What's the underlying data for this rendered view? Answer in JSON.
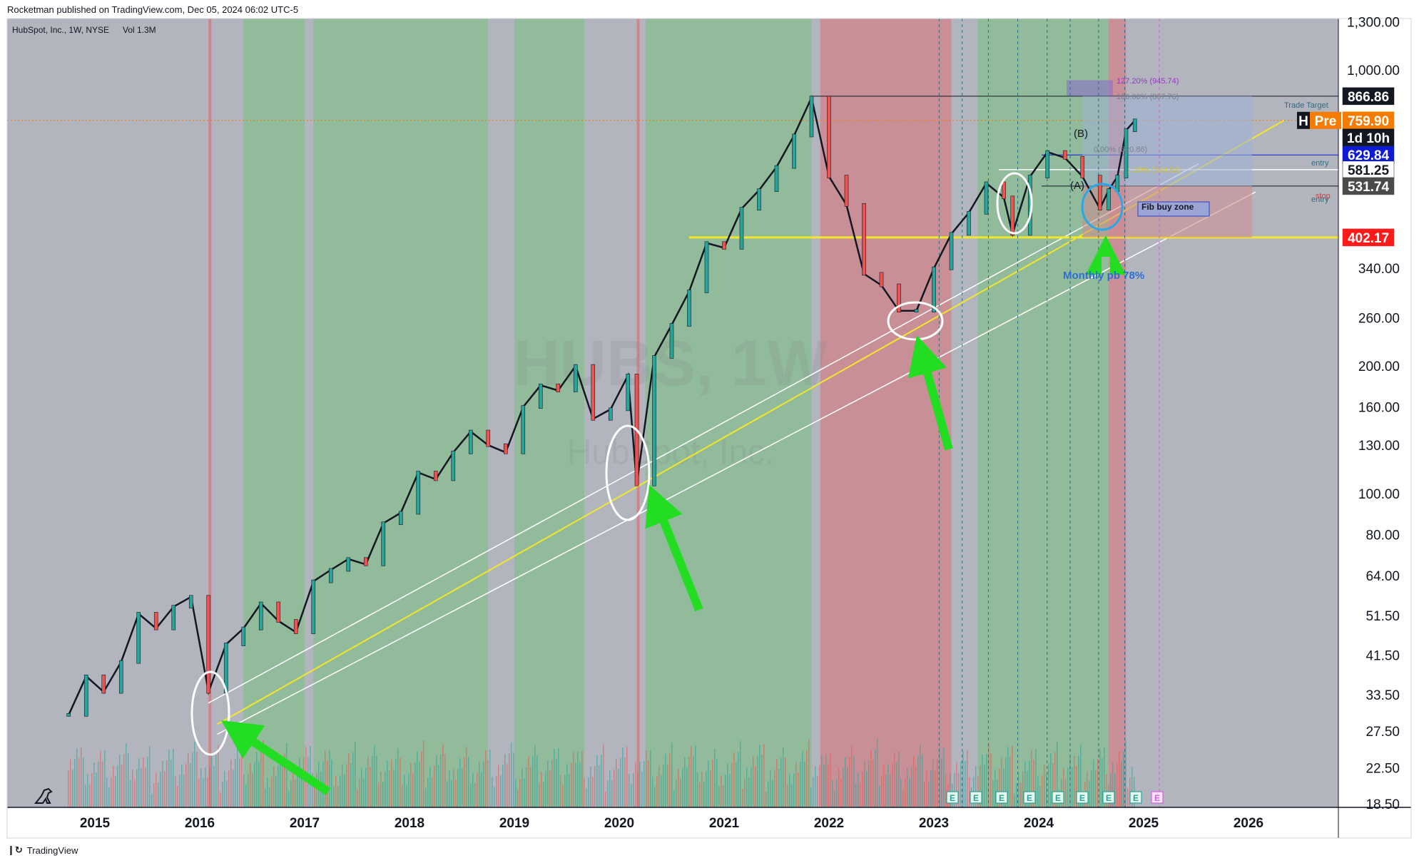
{
  "header": {
    "published_line": "Rocketman published on TradingView.com, Dec 05, 2024 06:02 UTC-5"
  },
  "footer": {
    "brand": "TradingView"
  },
  "chart_data": {
    "type": "candlestick",
    "symbol_line": "HubSpot, Inc., 1W, NYSE",
    "volume_label": "Vol",
    "volume_value": "1.3M",
    "watermark_ticker": "HUBS, 1W",
    "watermark_name": "HubSpot, Inc.",
    "y_scale": "log",
    "x_ticks": [
      "2015",
      "2016",
      "2017",
      "2018",
      "2019",
      "2020",
      "2021",
      "2022",
      "2023",
      "2024",
      "2025",
      "2026"
    ],
    "y_ticks": [
      "1,300.00",
      "1,000.00",
      "340.00",
      "260.00",
      "200.00",
      "160.00",
      "130.00",
      "100.00",
      "80.00",
      "64.00",
      "51.50",
      "41.50",
      "33.50",
      "27.50",
      "22.50",
      "18.50"
    ],
    "y_tick_values": [
      1300,
      1000,
      340,
      260,
      200,
      160,
      130,
      100,
      80,
      64,
      51.5,
      41.5,
      33.5,
      27.5,
      22.5,
      18.5
    ],
    "price_tags": [
      {
        "label": "866.86",
        "value": 866.86,
        "bg": "#131722",
        "fg": "#ffffff"
      },
      {
        "label": "759.90",
        "value": 759.9,
        "bg": "#f57c00",
        "fg": "#ffffff"
      },
      {
        "label": "1d 10h",
        "value": 700,
        "bg": "#131722",
        "fg": "#ffffff"
      },
      {
        "label": "629.84",
        "value": 629.84,
        "bg": "#0d1bd6",
        "fg": "#ffffff"
      },
      {
        "label": "581.25",
        "value": 581.25,
        "bg": "#ffffff",
        "fg": "#131722"
      },
      {
        "label": "531.74",
        "value": 531.74,
        "bg": "#4a4a4a",
        "fg": "#ffffff"
      },
      {
        "label": "402.17",
        "value": 402.17,
        "bg": "#ff1a1a",
        "fg": "#ffffff"
      }
    ],
    "pre_label": "Pre",
    "h_label": "H",
    "annotations": {
      "trade_target": "Trade Target",
      "entry_1": "entry",
      "entry_2": "entry",
      "stop": "stop",
      "fib_127": "127.20% (945.74)",
      "fib_100": "100.00% (867.76)",
      "fib_0": "0.00% (620.86)",
      "fib_mid": "1.20% (584.53)",
      "wave_b": "(B)",
      "wave_a": "(A)",
      "buy_zone": "Fib buy zone",
      "monthly_pb": "Monthly pb 78%",
      "earnings_marker": "E"
    },
    "series": [
      {
        "name": "HUBS",
        "points": [
          [
            "2014-10",
            30
          ],
          [
            "2014-12",
            37
          ],
          [
            "2015-02",
            34
          ],
          [
            "2015-04",
            40
          ],
          [
            "2015-06",
            52
          ],
          [
            "2015-08",
            48
          ],
          [
            "2015-10",
            54
          ],
          [
            "2015-12",
            57
          ],
          [
            "2016-02",
            34
          ],
          [
            "2016-04",
            44
          ],
          [
            "2016-06",
            48
          ],
          [
            "2016-08",
            55
          ],
          [
            "2016-10",
            50
          ],
          [
            "2016-12",
            47
          ],
          [
            "2017-02",
            62
          ],
          [
            "2017-04",
            66
          ],
          [
            "2017-06",
            70
          ],
          [
            "2017-08",
            68
          ],
          [
            "2017-10",
            85
          ],
          [
            "2017-12",
            90
          ],
          [
            "2018-02",
            112
          ],
          [
            "2018-04",
            108
          ],
          [
            "2018-06",
            125
          ],
          [
            "2018-08",
            140
          ],
          [
            "2018-10",
            130
          ],
          [
            "2018-12",
            125
          ],
          [
            "2019-02",
            160
          ],
          [
            "2019-04",
            180
          ],
          [
            "2019-06",
            175
          ],
          [
            "2019-08",
            200
          ],
          [
            "2019-10",
            150
          ],
          [
            "2019-12",
            158
          ],
          [
            "2020-02",
            190
          ],
          [
            "2020-03",
            105
          ],
          [
            "2020-05",
            210
          ],
          [
            "2020-07",
            250
          ],
          [
            "2020-09",
            300
          ],
          [
            "2020-11",
            390
          ],
          [
            "2021-01",
            380
          ],
          [
            "2021-03",
            470
          ],
          [
            "2021-05",
            520
          ],
          [
            "2021-07",
            590
          ],
          [
            "2021-09",
            700
          ],
          [
            "2021-11",
            860
          ],
          [
            "2022-01",
            560
          ],
          [
            "2022-03",
            480
          ],
          [
            "2022-05",
            330
          ],
          [
            "2022-07",
            310
          ],
          [
            "2022-09",
            270
          ],
          [
            "2022-11",
            270
          ],
          [
            "2023-01",
            340
          ],
          [
            "2023-03",
            410
          ],
          [
            "2023-05",
            460
          ],
          [
            "2023-07",
            540
          ],
          [
            "2023-09",
            500
          ],
          [
            "2023-10",
            410
          ],
          [
            "2023-12",
            560
          ],
          [
            "2024-02",
            640
          ],
          [
            "2024-04",
            620
          ],
          [
            "2024-06",
            560
          ],
          [
            "2024-08",
            470
          ],
          [
            "2024-09",
            520
          ],
          [
            "2024-10",
            560
          ],
          [
            "2024-11",
            720
          ],
          [
            "2024-12",
            759.9
          ]
        ]
      }
    ],
    "background_regime": [
      {
        "from": "2014-10",
        "to": "2016-02",
        "color": "grey"
      },
      {
        "from": "2016-06",
        "to": "2017-01",
        "color": "green"
      },
      {
        "from": "2017-01",
        "to": "2017-02",
        "color": "grey"
      },
      {
        "from": "2017-02",
        "to": "2018-10",
        "color": "green"
      },
      {
        "from": "2018-10",
        "to": "2019-01",
        "color": "grey"
      },
      {
        "from": "2019-01",
        "to": "2019-09",
        "color": "green"
      },
      {
        "from": "2020-04",
        "to": "2021-11",
        "color": "green"
      },
      {
        "from": "2021-12",
        "to": "2023-03",
        "color": "red"
      },
      {
        "from": "2023-06",
        "to": "2024-09",
        "color": "mixed"
      },
      {
        "from": "2024-09",
        "to": "2024-11",
        "color": "red"
      }
    ],
    "colors": {
      "up": "#26a69a",
      "down": "#ef5350",
      "grey_bg": "#b2b5be",
      "green_bg": "#8fbc98",
      "red_bg": "#c98e93",
      "support_line": "#f2e72b",
      "arrow": "#22dd22"
    },
    "grid": false
  }
}
